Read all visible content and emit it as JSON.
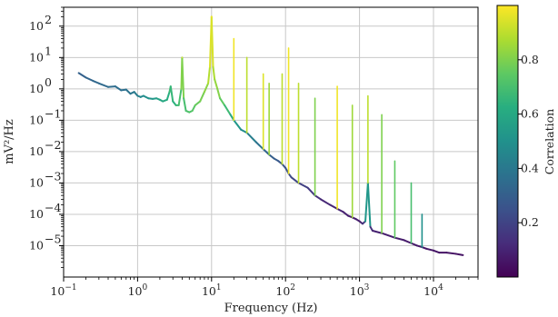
{
  "chart_data": {
    "type": "line",
    "title": "",
    "xlabel": "Frequency (Hz)",
    "ylabel": "mV²/Hz",
    "x_scale": "log",
    "y_scale": "log",
    "xlim": [
      0.1,
      40000
    ],
    "ylim": [
      1e-06,
      400
    ],
    "grid": true,
    "x_ticks": [
      {
        "value": 0.1,
        "base": "10",
        "exp": "−1"
      },
      {
        "value": 1,
        "base": "10",
        "exp": "0"
      },
      {
        "value": 10,
        "base": "10",
        "exp": "1"
      },
      {
        "value": 100,
        "base": "10",
        "exp": "2"
      },
      {
        "value": 1000,
        "base": "10",
        "exp": "3"
      },
      {
        "value": 10000,
        "base": "10",
        "exp": "4"
      }
    ],
    "y_ticks": [
      {
        "value": 100,
        "base": "10",
        "exp": "2"
      },
      {
        "value": 10,
        "base": "10",
        "exp": "1"
      },
      {
        "value": 1,
        "base": "10",
        "exp": "0"
      },
      {
        "value": 0.1,
        "base": "10",
        "exp": "−1"
      },
      {
        "value": 0.01,
        "base": "10",
        "exp": "−2"
      },
      {
        "value": 0.001,
        "base": "10",
        "exp": "−3"
      },
      {
        "value": 0.0001,
        "base": "10",
        "exp": "−4"
      },
      {
        "value": 1e-05,
        "base": "10",
        "exp": "−5"
      }
    ],
    "colorbar": {
      "label": "Correlation",
      "colormap": "viridis",
      "range": [
        0.0,
        1.0
      ],
      "ticks": [
        {
          "value": 0.2,
          "label": "0.2"
        },
        {
          "value": 0.4,
          "label": "0.4"
        },
        {
          "value": 0.6,
          "label": "0.6"
        },
        {
          "value": 0.8,
          "label": "0.8"
        }
      ]
    },
    "series": [
      {
        "x": [
          0.16,
          0.2,
          0.25,
          0.3,
          0.4,
          0.5,
          0.6,
          0.7,
          0.8,
          0.9,
          1.0,
          1.1,
          1.2,
          1.4,
          1.6,
          1.8,
          2.0,
          2.2,
          2.5,
          2.7,
          2.8,
          3.0,
          3.3,
          3.6,
          3.9,
          4.0,
          4.2,
          4.5,
          5.0,
          5.5,
          6.0,
          7.0,
          8.0,
          9.0,
          9.5,
          10.0,
          10.5,
          11,
          12,
          13,
          15,
          18,
          20,
          25,
          30,
          40,
          50,
          60,
          70,
          80,
          90,
          100,
          110,
          120,
          150,
          200,
          250,
          300,
          400,
          500,
          600,
          700,
          800,
          900,
          1000,
          1100,
          1200,
          1300,
          1400,
          1500,
          2000,
          3000,
          4000,
          5000,
          6000,
          7000,
          8000,
          10000,
          12000,
          15000,
          20000,
          25000
        ],
        "y": [
          3.2,
          2.3,
          1.8,
          1.5,
          1.15,
          1.2,
          0.9,
          0.95,
          0.7,
          0.8,
          0.6,
          0.55,
          0.6,
          0.5,
          0.48,
          0.5,
          0.45,
          0.4,
          0.45,
          0.8,
          1.2,
          0.4,
          0.3,
          0.3,
          1.0,
          10.0,
          0.5,
          0.2,
          0.18,
          0.2,
          0.3,
          0.4,
          0.8,
          1.5,
          5.0,
          200.0,
          5.0,
          2.0,
          1.0,
          0.5,
          0.3,
          0.15,
          0.1,
          0.05,
          0.04,
          0.02,
          0.012,
          0.008,
          0.006,
          0.005,
          0.004,
          0.003,
          0.002,
          0.0015,
          0.001,
          0.0007,
          0.0004,
          0.0003,
          0.0002,
          0.00015,
          0.00012,
          9e-05,
          8e-05,
          7e-05,
          6e-05,
          5e-05,
          6e-05,
          0.001,
          4e-05,
          3e-05,
          2.5e-05,
          1.8e-05,
          1.5e-05,
          1.2e-05,
          1e-05,
          9e-06,
          8e-06,
          7e-06,
          6e-06,
          6e-06,
          5.5e-06,
          5e-06
        ],
        "correlation": [
          0.3,
          0.32,
          0.33,
          0.34,
          0.35,
          0.35,
          0.36,
          0.37,
          0.38,
          0.4,
          0.42,
          0.45,
          0.48,
          0.5,
          0.52,
          0.55,
          0.58,
          0.6,
          0.6,
          0.65,
          0.7,
          0.62,
          0.65,
          0.68,
          0.72,
          0.9,
          0.7,
          0.7,
          0.72,
          0.72,
          0.75,
          0.78,
          0.8,
          0.85,
          0.92,
          0.98,
          0.9,
          0.85,
          0.82,
          0.8,
          0.7,
          0.65,
          0.55,
          0.5,
          0.45,
          0.4,
          0.35,
          0.3,
          0.3,
          0.28,
          0.26,
          0.25,
          0.24,
          0.22,
          0.2,
          0.18,
          0.15,
          0.12,
          0.1,
          0.1,
          0.1,
          0.08,
          0.08,
          0.08,
          0.08,
          0.1,
          0.2,
          0.85,
          0.2,
          0.1,
          0.08,
          0.08,
          0.08,
          0.07,
          0.07,
          0.06,
          0.06,
          0.06,
          0.05,
          0.05,
          0.05,
          0.05
        ]
      }
    ],
    "peaks": [
      {
        "x": 4.0,
        "y": 10.0,
        "correlation": 0.95
      },
      {
        "x": 10.0,
        "y": 200.0,
        "correlation": 0.99
      },
      {
        "x": 20.0,
        "y": 40.0,
        "correlation": 0.98
      },
      {
        "x": 30.0,
        "y": 10.0,
        "correlation": 0.9
      },
      {
        "x": 50.0,
        "y": 3.0,
        "correlation": 0.95
      },
      {
        "x": 60.0,
        "y": 1.5,
        "correlation": 0.85
      },
      {
        "x": 90.0,
        "y": 3.0,
        "correlation": 0.9
      },
      {
        "x": 110.0,
        "y": 20.0,
        "correlation": 0.98
      },
      {
        "x": 150.0,
        "y": 1.5,
        "correlation": 0.9
      },
      {
        "x": 250.0,
        "y": 0.5,
        "correlation": 0.8
      },
      {
        "x": 500.0,
        "y": 1.2,
        "correlation": 0.98
      },
      {
        "x": 800.0,
        "y": 0.3,
        "correlation": 0.85
      },
      {
        "x": 1300.0,
        "y": 0.6,
        "correlation": 0.9
      },
      {
        "x": 2000.0,
        "y": 0.15,
        "correlation": 0.8
      },
      {
        "x": 3000.0,
        "y": 0.005,
        "correlation": 0.75
      },
      {
        "x": 5000.0,
        "y": 0.001,
        "correlation": 0.7
      },
      {
        "x": 7000.0,
        "y": 0.0001,
        "correlation": 0.5
      }
    ]
  }
}
